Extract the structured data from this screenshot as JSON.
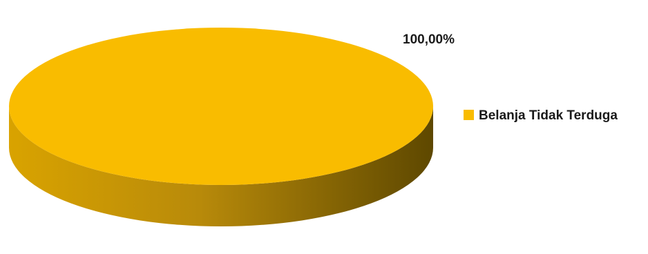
{
  "chart_data": {
    "type": "pie",
    "style": "3d",
    "categories": [
      "Belanja Tidak Terduga"
    ],
    "values": [
      100
    ],
    "data_labels": [
      "100,00%"
    ],
    "colors": [
      "#F9BC00"
    ],
    "legend_placement": "right"
  }
}
